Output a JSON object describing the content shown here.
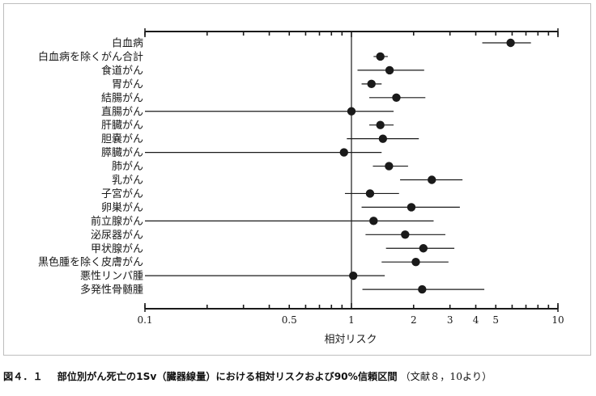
{
  "chart_data": {
    "type": "scatter",
    "subtype": "forest-plot-log-scale",
    "xlabel": "相対リスク",
    "x_scale": "log",
    "xlim": [
      0.1,
      10
    ],
    "x_ticks": [
      0.1,
      0.5,
      1,
      2,
      3,
      4,
      5,
      10
    ],
    "x_tick_labels": [
      "0.1",
      "0.5",
      "1",
      "2",
      "3",
      "4",
      "5",
      "10"
    ],
    "reference_line": 1,
    "categories": [
      "白血病",
      "白血病を除くがん合計",
      "食道がん",
      "胃がん",
      "結腸がん",
      "直腸がん",
      "肝臓がん",
      "胆嚢がん",
      "膵臓がん",
      "肺がん",
      "乳がん",
      "子宮がん",
      "卵巣がん",
      "前立腺がん",
      "泌尿器がん",
      "甲状腺がん",
      "黒色腫を除く皮膚がん",
      "悪性リンパ腫",
      "多発性骨髄腫"
    ],
    "estimates": [
      5.9,
      1.38,
      1.53,
      1.25,
      1.65,
      1.0,
      1.38,
      1.42,
      0.92,
      1.52,
      2.45,
      1.23,
      1.95,
      1.28,
      1.82,
      2.23,
      2.05,
      1.02,
      2.2
    ],
    "ci_lower": [
      4.3,
      1.28,
      1.07,
      1.12,
      1.22,
      0.1,
      1.22,
      0.95,
      0.1,
      1.27,
      1.72,
      0.93,
      1.12,
      0.1,
      1.17,
      1.47,
      1.4,
      0.1,
      1.13
    ],
    "ci_upper": [
      7.4,
      1.5,
      2.25,
      1.4,
      2.28,
      1.6,
      1.6,
      2.12,
      1.4,
      1.88,
      3.45,
      1.7,
      3.35,
      2.5,
      2.85,
      3.15,
      2.95,
      1.45,
      4.4
    ]
  },
  "caption": {
    "figure_label": "図４．１",
    "title": "部位別がん死亡の1Sv（臓器線量）における相対リスクおよび90%信頼区間",
    "source": "（文献８，10より）"
  }
}
